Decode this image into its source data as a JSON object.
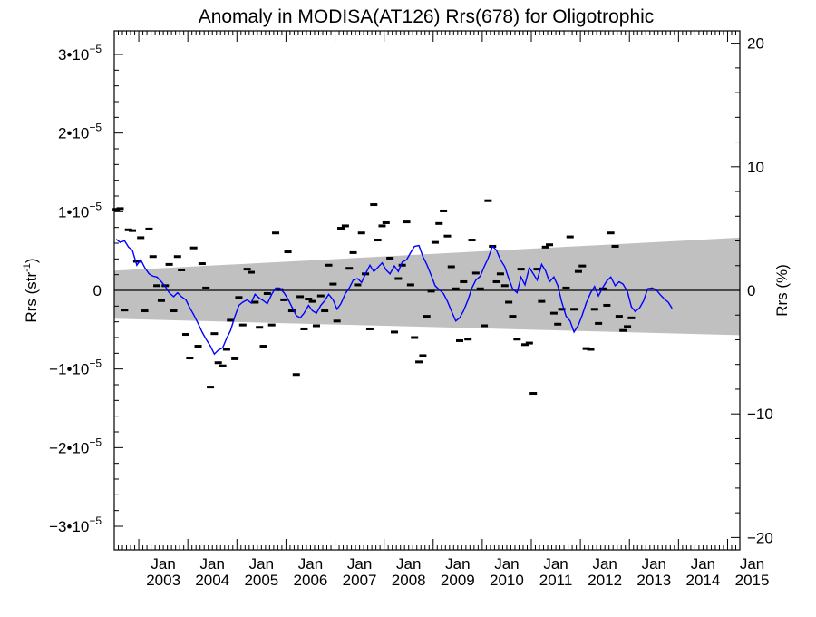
{
  "chart_data": {
    "type": "scatter",
    "title": "Anomaly in MODISA(AT126) Rrs(678) for Oligotrophic",
    "ylabel_left": {
      "base": "Rrs (str",
      "sup": "-1",
      "close": ")"
    },
    "ylabel_right": "Rrs (%)",
    "xlim": [
      2002.5,
      2015.25
    ],
    "ylim_left": [
      -3.3e-05,
      3.3e-05
    ],
    "ylim_right": [
      -21,
      21
    ],
    "x_ticks": [
      {
        "year": 2003,
        "month": "Jan",
        "label": "2003"
      },
      {
        "year": 2004,
        "month": "Jan",
        "label": "2004"
      },
      {
        "year": 2005,
        "month": "Jan",
        "label": "2005"
      },
      {
        "year": 2006,
        "month": "Jan",
        "label": "2006"
      },
      {
        "year": 2007,
        "month": "Jan",
        "label": "2007"
      },
      {
        "year": 2008,
        "month": "Jan",
        "label": "2008"
      },
      {
        "year": 2009,
        "month": "Jan",
        "label": "2009"
      },
      {
        "year": 2010,
        "month": "Jan",
        "label": "2010"
      },
      {
        "year": 2011,
        "month": "Jan",
        "label": "2011"
      },
      {
        "year": 2012,
        "month": "Jan",
        "label": "2012"
      },
      {
        "year": 2013,
        "month": "Jan",
        "label": "2013"
      },
      {
        "year": 2014,
        "month": "Jan",
        "label": "2014"
      },
      {
        "year": 2015,
        "month": "Jan",
        "label": "2015"
      }
    ],
    "y_ticks_left": [
      {
        "value": 3e-05,
        "mant": "3",
        "exp": "−5",
        "plain": ""
      },
      {
        "value": 2e-05,
        "mant": "2",
        "exp": "−5",
        "plain": ""
      },
      {
        "value": 1e-05,
        "mant": "1",
        "exp": "−5",
        "plain": ""
      },
      {
        "value": 0,
        "mant": "",
        "exp": "",
        "plain": "0"
      },
      {
        "value": -1e-05,
        "mant": "−1",
        "exp": "−5",
        "plain": ""
      },
      {
        "value": -2e-05,
        "mant": "−2",
        "exp": "−5",
        "plain": ""
      },
      {
        "value": -3e-05,
        "mant": "−3",
        "exp": "−5",
        "plain": ""
      }
    ],
    "y_ticks_right": [
      {
        "value": 20,
        "label": "20"
      },
      {
        "value": 10,
        "label": "10"
      },
      {
        "value": 0,
        "label": "0"
      },
      {
        "value": -10,
        "label": "−10"
      },
      {
        "value": -20,
        "label": "−20"
      }
    ],
    "band": {
      "upper_start": 2.5e-06,
      "upper_end": 6.7e-06,
      "lower_start": -3.6e-06,
      "lower_end": -5.7e-06
    },
    "colors": {
      "line": "#0000ff",
      "band": "#c0c0c0",
      "points": "#000000",
      "zero": "#000000"
    },
    "points": [
      {
        "x": 2002.54,
        "y": 1.03e-05
      },
      {
        "x": 2002.62,
        "y": 1.04e-05
      },
      {
        "x": 2002.71,
        "y": -2.5e-06
      },
      {
        "x": 2002.79,
        "y": 7.7e-06
      },
      {
        "x": 2002.87,
        "y": 7.6e-06
      },
      {
        "x": 2002.96,
        "y": 3.7e-06
      },
      {
        "x": 2003.04,
        "y": 6.7e-06
      },
      {
        "x": 2003.12,
        "y": -2.6e-06
      },
      {
        "x": 2003.21,
        "y": 7.8e-06
      },
      {
        "x": 2003.29,
        "y": 4.3e-06
      },
      {
        "x": 2003.37,
        "y": 6e-07
      },
      {
        "x": 2003.46,
        "y": -1.3e-06
      },
      {
        "x": 2003.54,
        "y": 6e-07
      },
      {
        "x": 2003.62,
        "y": 3.3e-06
      },
      {
        "x": 2003.71,
        "y": -2.6e-06
      },
      {
        "x": 2003.79,
        "y": 4.3e-06
      },
      {
        "x": 2003.87,
        "y": 2.6e-06
      },
      {
        "x": 2003.96,
        "y": -5.6e-06
      },
      {
        "x": 2004.04,
        "y": -8.6e-06
      },
      {
        "x": 2004.12,
        "y": 5.4e-06
      },
      {
        "x": 2004.21,
        "y": -7.1e-06
      },
      {
        "x": 2004.29,
        "y": 3.4e-06
      },
      {
        "x": 2004.37,
        "y": 3e-07
      },
      {
        "x": 2004.46,
        "y": -1.23e-05
      },
      {
        "x": 2004.54,
        "y": -5.5e-06
      },
      {
        "x": 2004.62,
        "y": -9.2e-06
      },
      {
        "x": 2004.71,
        "y": -9.6e-06
      },
      {
        "x": 2004.79,
        "y": -7.5e-06
      },
      {
        "x": 2004.87,
        "y": -3.8e-06
      },
      {
        "x": 2004.96,
        "y": -8.7e-06
      },
      {
        "x": 2005.04,
        "y": -9e-07
      },
      {
        "x": 2005.12,
        "y": -4.4e-06
      },
      {
        "x": 2005.21,
        "y": 2.7e-06
      },
      {
        "x": 2005.29,
        "y": 2.3e-06
      },
      {
        "x": 2005.37,
        "y": -1.5e-06
      },
      {
        "x": 2005.46,
        "y": -4.7e-06
      },
      {
        "x": 2005.54,
        "y": -7.1e-06
      },
      {
        "x": 2005.62,
        "y": -4e-07
      },
      {
        "x": 2005.71,
        "y": -4.4e-06
      },
      {
        "x": 2005.79,
        "y": 7.3e-06
      },
      {
        "x": 2005.87,
        "y": 1e-07
      },
      {
        "x": 2005.96,
        "y": -1.2e-06
      },
      {
        "x": 2006.04,
        "y": 4.9e-06
      },
      {
        "x": 2006.12,
        "y": -2.6e-06
      },
      {
        "x": 2006.21,
        "y": -1.07e-05
      },
      {
        "x": 2006.29,
        "y": -8e-07
      },
      {
        "x": 2006.37,
        "y": -4.9e-06
      },
      {
        "x": 2006.46,
        "y": -1.1e-06
      },
      {
        "x": 2006.54,
        "y": -1.4e-06
      },
      {
        "x": 2006.62,
        "y": -4.5e-06
      },
      {
        "x": 2006.71,
        "y": -7e-07
      },
      {
        "x": 2006.79,
        "y": -2.6e-06
      },
      {
        "x": 2006.87,
        "y": 3.2e-06
      },
      {
        "x": 2006.96,
        "y": 8e-07
      },
      {
        "x": 2007.04,
        "y": -3.9e-06
      },
      {
        "x": 2007.12,
        "y": 7.9e-06
      },
      {
        "x": 2007.21,
        "y": 8.2e-06
      },
      {
        "x": 2007.29,
        "y": 2.8e-06
      },
      {
        "x": 2007.37,
        "y": 4.8e-06
      },
      {
        "x": 2007.46,
        "y": 7e-07
      },
      {
        "x": 2007.54,
        "y": 7.3e-06
      },
      {
        "x": 2007.62,
        "y": 2.1e-06
      },
      {
        "x": 2007.71,
        "y": -4.9e-06
      },
      {
        "x": 2007.79,
        "y": 1.09e-05
      },
      {
        "x": 2007.87,
        "y": 6.4e-06
      },
      {
        "x": 2007.96,
        "y": 8.2e-06
      },
      {
        "x": 2008.04,
        "y": 8.6e-06
      },
      {
        "x": 2008.12,
        "y": 4.1e-06
      },
      {
        "x": 2008.21,
        "y": -5.3e-06
      },
      {
        "x": 2008.29,
        "y": 1.5e-06
      },
      {
        "x": 2008.37,
        "y": 3.2e-06
      },
      {
        "x": 2008.46,
        "y": 8.7e-06
      },
      {
        "x": 2008.54,
        "y": 7e-07
      },
      {
        "x": 2008.62,
        "y": -6e-06
      },
      {
        "x": 2008.71,
        "y": -9.1e-06
      },
      {
        "x": 2008.79,
        "y": -8.3e-06
      },
      {
        "x": 2008.87,
        "y": -3.3e-06
      },
      {
        "x": 2008.96,
        "y": -1e-07
      },
      {
        "x": 2009.04,
        "y": 6.1e-06
      },
      {
        "x": 2009.12,
        "y": 8.5e-06
      },
      {
        "x": 2009.21,
        "y": 1.01e-05
      },
      {
        "x": 2009.29,
        "y": 6.9e-06
      },
      {
        "x": 2009.37,
        "y": 3e-06
      },
      {
        "x": 2009.46,
        "y": 2e-07
      },
      {
        "x": 2009.54,
        "y": -6.4e-06
      },
      {
        "x": 2009.62,
        "y": 1.1e-06
      },
      {
        "x": 2009.71,
        "y": -6.2e-06
      },
      {
        "x": 2009.79,
        "y": 6.4e-06
      },
      {
        "x": 2009.87,
        "y": 2.2e-06
      },
      {
        "x": 2009.96,
        "y": 2e-07
      },
      {
        "x": 2010.04,
        "y": -4.5e-06
      },
      {
        "x": 2010.12,
        "y": 1.14e-05
      },
      {
        "x": 2010.21,
        "y": 5.6e-06
      },
      {
        "x": 2010.29,
        "y": 1.1e-06
      },
      {
        "x": 2010.37,
        "y": 2.1e-06
      },
      {
        "x": 2010.46,
        "y": 6e-07
      },
      {
        "x": 2010.54,
        "y": -1.5e-06
      },
      {
        "x": 2010.62,
        "y": -3.3e-06
      },
      {
        "x": 2010.71,
        "y": -6.2e-06
      },
      {
        "x": 2010.79,
        "y": 2.7e-06
      },
      {
        "x": 2010.87,
        "y": -6.9e-06
      },
      {
        "x": 2010.96,
        "y": -6.7e-06
      },
      {
        "x": 2011.04,
        "y": -1.31e-05
      },
      {
        "x": 2011.12,
        "y": 2.7e-06
      },
      {
        "x": 2011.21,
        "y": -1.4e-06
      },
      {
        "x": 2011.29,
        "y": 5.5e-06
      },
      {
        "x": 2011.37,
        "y": 5.8e-06
      },
      {
        "x": 2011.46,
        "y": -2.9e-06
      },
      {
        "x": 2011.54,
        "y": -4.3e-06
      },
      {
        "x": 2011.62,
        "y": -2.4e-06
      },
      {
        "x": 2011.71,
        "y": 3e-07
      },
      {
        "x": 2011.79,
        "y": 6.8e-06
      },
      {
        "x": 2011.87,
        "y": -2.4e-06
      },
      {
        "x": 2011.96,
        "y": 2.4e-06
      },
      {
        "x": 2012.04,
        "y": 3.1e-06
      },
      {
        "x": 2012.12,
        "y": -7.4e-06
      },
      {
        "x": 2012.21,
        "y": -7.5e-06
      },
      {
        "x": 2012.29,
        "y": -2.4e-06
      },
      {
        "x": 2012.37,
        "y": -4.2e-06
      },
      {
        "x": 2012.46,
        "y": 2e-07
      },
      {
        "x": 2012.54,
        "y": -1.9e-06
      },
      {
        "x": 2012.62,
        "y": 7.3e-06
      },
      {
        "x": 2012.71,
        "y": 5.6e-06
      },
      {
        "x": 2012.79,
        "y": -3.3e-06
      },
      {
        "x": 2012.87,
        "y": -5.1e-06
      },
      {
        "x": 2012.96,
        "y": -4.6e-06
      },
      {
        "x": 2013.04,
        "y": -3.5e-06
      }
    ],
    "curve": [
      {
        "x": 2002.54,
        "y": 6.5e-06
      },
      {
        "x": 2002.62,
        "y": 6.1e-06
      },
      {
        "x": 2002.71,
        "y": 6.3e-06
      },
      {
        "x": 2002.79,
        "y": 5.5e-06
      },
      {
        "x": 2002.87,
        "y": 5.1e-06
      },
      {
        "x": 2002.96,
        "y": 3.2e-06
      },
      {
        "x": 2003.04,
        "y": 3.9e-06
      },
      {
        "x": 2003.12,
        "y": 2.9e-06
      },
      {
        "x": 2003.21,
        "y": 2.1e-06
      },
      {
        "x": 2003.29,
        "y": 1.8e-06
      },
      {
        "x": 2003.37,
        "y": 1.7e-06
      },
      {
        "x": 2003.46,
        "y": 1.1e-06
      },
      {
        "x": 2003.54,
        "y": 5e-07
      },
      {
        "x": 2003.62,
        "y": -3e-07
      },
      {
        "x": 2003.71,
        "y": -8e-07
      },
      {
        "x": 2003.79,
        "y": -3e-07
      },
      {
        "x": 2003.87,
        "y": -8e-07
      },
      {
        "x": 2003.96,
        "y": -1.2e-06
      },
      {
        "x": 2004.04,
        "y": -2.2e-06
      },
      {
        "x": 2004.12,
        "y": -3.1e-06
      },
      {
        "x": 2004.21,
        "y": -4.2e-06
      },
      {
        "x": 2004.29,
        "y": -5.3e-06
      },
      {
        "x": 2004.37,
        "y": -6.2e-06
      },
      {
        "x": 2004.46,
        "y": -7.1e-06
      },
      {
        "x": 2004.54,
        "y": -8.1e-06
      },
      {
        "x": 2004.62,
        "y": -7.6e-06
      },
      {
        "x": 2004.71,
        "y": -7.3e-06
      },
      {
        "x": 2004.79,
        "y": -6.1e-06
      },
      {
        "x": 2004.87,
        "y": -5.1e-06
      },
      {
        "x": 2004.96,
        "y": -3.3e-06
      },
      {
        "x": 2005.04,
        "y": -1.9e-06
      },
      {
        "x": 2005.12,
        "y": -1.5e-06
      },
      {
        "x": 2005.21,
        "y": -1.2e-06
      },
      {
        "x": 2005.29,
        "y": -1.6e-06
      },
      {
        "x": 2005.37,
        "y": -5e-07
      },
      {
        "x": 2005.46,
        "y": -1e-06
      },
      {
        "x": 2005.54,
        "y": -1.3e-06
      },
      {
        "x": 2005.62,
        "y": -1.7e-06
      },
      {
        "x": 2005.71,
        "y": -5e-07
      },
      {
        "x": 2005.79,
        "y": 3e-07
      },
      {
        "x": 2005.87,
        "y": 3e-07
      },
      {
        "x": 2005.96,
        "y": -3e-07
      },
      {
        "x": 2006.04,
        "y": -1.1e-06
      },
      {
        "x": 2006.12,
        "y": -2.1e-06
      },
      {
        "x": 2006.21,
        "y": -3.2e-06
      },
      {
        "x": 2006.29,
        "y": -3.5e-06
      },
      {
        "x": 2006.37,
        "y": -2.9e-06
      },
      {
        "x": 2006.46,
        "y": -1.9e-06
      },
      {
        "x": 2006.54,
        "y": -2.6e-06
      },
      {
        "x": 2006.62,
        "y": -2.9e-06
      },
      {
        "x": 2006.71,
        "y": -1.9e-06
      },
      {
        "x": 2006.79,
        "y": -1.3e-06
      },
      {
        "x": 2006.87,
        "y": -5e-07
      },
      {
        "x": 2006.96,
        "y": -1.2e-06
      },
      {
        "x": 2007.04,
        "y": -2.4e-06
      },
      {
        "x": 2007.12,
        "y": -1.7e-06
      },
      {
        "x": 2007.21,
        "y": -4e-07
      },
      {
        "x": 2007.29,
        "y": 3e-07
      },
      {
        "x": 2007.37,
        "y": 1.3e-06
      },
      {
        "x": 2007.46,
        "y": 1.5e-06
      },
      {
        "x": 2007.54,
        "y": 1e-06
      },
      {
        "x": 2007.62,
        "y": 2.1e-06
      },
      {
        "x": 2007.71,
        "y": 3.2e-06
      },
      {
        "x": 2007.79,
        "y": 2.4e-06
      },
      {
        "x": 2007.87,
        "y": 2.9e-06
      },
      {
        "x": 2007.96,
        "y": 3.5e-06
      },
      {
        "x": 2008.04,
        "y": 2.6e-06
      },
      {
        "x": 2008.12,
        "y": 2.1e-06
      },
      {
        "x": 2008.21,
        "y": 3.1e-06
      },
      {
        "x": 2008.29,
        "y": 2.4e-06
      },
      {
        "x": 2008.37,
        "y": 3.6e-06
      },
      {
        "x": 2008.46,
        "y": 3.9e-06
      },
      {
        "x": 2008.54,
        "y": 4.8e-06
      },
      {
        "x": 2008.62,
        "y": 5.6e-06
      },
      {
        "x": 2008.71,
        "y": 5.7e-06
      },
      {
        "x": 2008.79,
        "y": 4.3e-06
      },
      {
        "x": 2008.87,
        "y": 3.3e-06
      },
      {
        "x": 2008.96,
        "y": 1.9e-06
      },
      {
        "x": 2009.04,
        "y": 6e-07
      },
      {
        "x": 2009.12,
        "y": 1e-07
      },
      {
        "x": 2009.21,
        "y": -4e-07
      },
      {
        "x": 2009.29,
        "y": -1.4e-06
      },
      {
        "x": 2009.37,
        "y": -2.6e-06
      },
      {
        "x": 2009.46,
        "y": -3.9e-06
      },
      {
        "x": 2009.54,
        "y": -3.5e-06
      },
      {
        "x": 2009.62,
        "y": -2.6e-06
      },
      {
        "x": 2009.71,
        "y": -1.2e-06
      },
      {
        "x": 2009.79,
        "y": 3e-07
      },
      {
        "x": 2009.87,
        "y": 1.3e-06
      },
      {
        "x": 2009.96,
        "y": 1.8e-06
      },
      {
        "x": 2010.04,
        "y": 3e-06
      },
      {
        "x": 2010.12,
        "y": 4.1e-06
      },
      {
        "x": 2010.21,
        "y": 5.6e-06
      },
      {
        "x": 2010.29,
        "y": 5.1e-06
      },
      {
        "x": 2010.37,
        "y": 3.9e-06
      },
      {
        "x": 2010.46,
        "y": 3e-06
      },
      {
        "x": 2010.54,
        "y": 1.5e-06
      },
      {
        "x": 2010.62,
        "y": 2e-07
      },
      {
        "x": 2010.71,
        "y": -3e-07
      },
      {
        "x": 2010.79,
        "y": 1.7e-06
      },
      {
        "x": 2010.87,
        "y": 7e-07
      },
      {
        "x": 2010.96,
        "y": 2.9e-06
      },
      {
        "x": 2011.04,
        "y": 2.1e-06
      },
      {
        "x": 2011.12,
        "y": 1.3e-06
      },
      {
        "x": 2011.21,
        "y": 3.3e-06
      },
      {
        "x": 2011.29,
        "y": 2.5e-06
      },
      {
        "x": 2011.37,
        "y": 1.1e-06
      },
      {
        "x": 2011.46,
        "y": 1.7e-06
      },
      {
        "x": 2011.54,
        "y": 6e-07
      },
      {
        "x": 2011.62,
        "y": -1.5e-06
      },
      {
        "x": 2011.71,
        "y": -3.3e-06
      },
      {
        "x": 2011.79,
        "y": -3.9e-06
      },
      {
        "x": 2011.87,
        "y": -5.3e-06
      },
      {
        "x": 2011.96,
        "y": -4.4e-06
      },
      {
        "x": 2012.04,
        "y": -3.1e-06
      },
      {
        "x": 2012.12,
        "y": -1.6e-06
      },
      {
        "x": 2012.21,
        "y": -3e-07
      },
      {
        "x": 2012.29,
        "y": 5e-07
      },
      {
        "x": 2012.37,
        "y": -7e-07
      },
      {
        "x": 2012.46,
        "y": 4e-07
      },
      {
        "x": 2012.54,
        "y": 1.2e-06
      },
      {
        "x": 2012.62,
        "y": 1.7e-06
      },
      {
        "x": 2012.71,
        "y": 6e-07
      },
      {
        "x": 2012.79,
        "y": 1.1e-06
      },
      {
        "x": 2012.87,
        "y": 8e-07
      },
      {
        "x": 2012.96,
        "y": -2e-07
      },
      {
        "x": 2013.04,
        "y": -2.1e-06
      },
      {
        "x": 2013.12,
        "y": -2.7e-06
      },
      {
        "x": 2013.21,
        "y": -2.2e-06
      },
      {
        "x": 2013.29,
        "y": -1.3e-06
      },
      {
        "x": 2013.37,
        "y": 2e-07
      },
      {
        "x": 2013.46,
        "y": 3e-07
      },
      {
        "x": 2013.54,
        "y": 1e-07
      },
      {
        "x": 2013.62,
        "y": -5e-07
      },
      {
        "x": 2013.71,
        "y": -1.1e-06
      },
      {
        "x": 2013.79,
        "y": -1.5e-06
      },
      {
        "x": 2013.87,
        "y": -2.3e-06
      }
    ]
  }
}
